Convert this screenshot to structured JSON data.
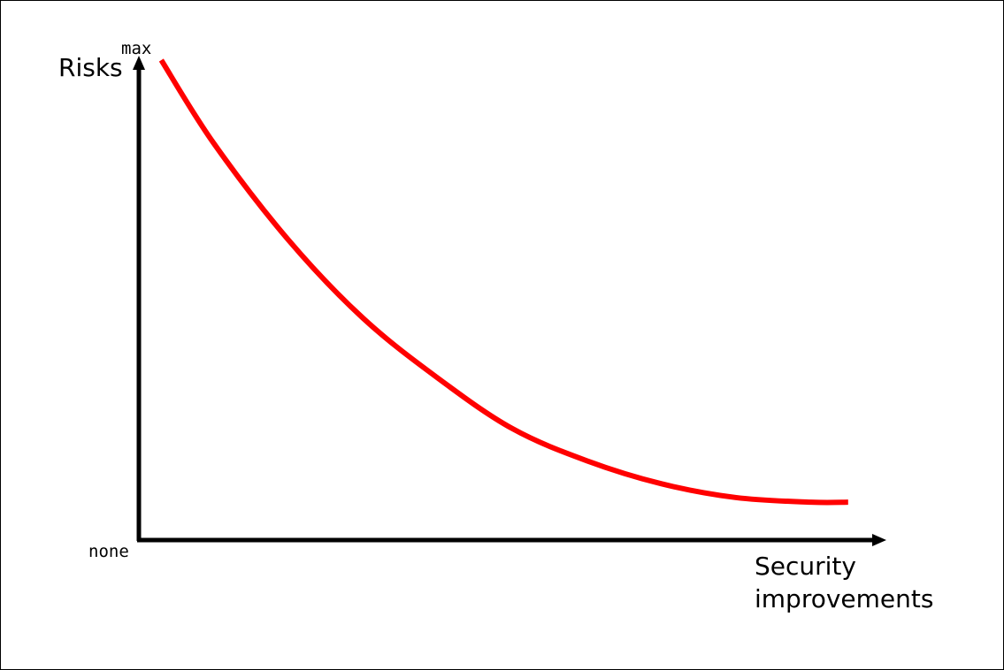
{
  "chart_data": {
    "type": "line",
    "ylabel": "Risks",
    "xlabel": [
      "Security",
      "improvements"
    ],
    "y_tick_labels": {
      "top": "max",
      "bottom": "none"
    },
    "xlim": [
      0,
      1
    ],
    "ylim": [
      0,
      1
    ],
    "grid": false,
    "series": [
      {
        "color": "#ff0000",
        "x": [
          0.03,
          0.1,
          0.2,
          0.3,
          0.4,
          0.5,
          0.6,
          0.7,
          0.8,
          0.9,
          0.95
        ],
        "y": [
          1.0,
          0.82,
          0.61,
          0.44,
          0.31,
          0.2,
          0.13,
          0.08,
          0.05,
          0.04,
          0.04
        ]
      }
    ]
  },
  "colors": {
    "axis": "#000000",
    "curve": "#ff0000",
    "background": "#ffffff"
  }
}
